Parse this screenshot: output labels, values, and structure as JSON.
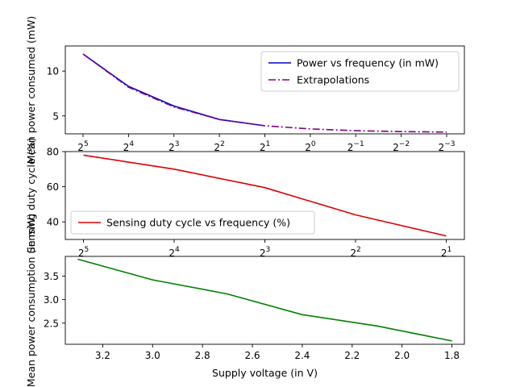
{
  "chart_data": [
    {
      "type": "line",
      "title": "",
      "xlabel": "",
      "ylabel": "Mean power consumed (mW)",
      "x_scale": "log2",
      "x_inverted": true,
      "x_ticks": [
        32,
        16,
        8,
        4,
        2,
        1,
        0.5,
        0.25,
        0.125
      ],
      "x_tick_labels": [
        {
          "base": "2",
          "exp": "5"
        },
        {
          "base": "2",
          "exp": "4"
        },
        {
          "base": "2",
          "exp": "3"
        },
        {
          "base": "2",
          "exp": "2"
        },
        {
          "base": "2",
          "exp": "1"
        },
        {
          "base": "2",
          "exp": "0"
        },
        {
          "base": "2",
          "exp": "−1"
        },
        {
          "base": "2",
          "exp": "−2"
        },
        {
          "base": "2",
          "exp": "−3"
        }
      ],
      "y_ticks": [
        5,
        10
      ],
      "y_tick_labels": [
        "5",
        "10"
      ],
      "ylim": [
        3.0,
        12.8
      ],
      "grid": false,
      "legend_position": "upper right",
      "series": [
        {
          "name": "Power vs frequency (in mW)",
          "color": "#0000cc",
          "style": "solid",
          "x": [
            32,
            16,
            8,
            4,
            2
          ],
          "y": [
            11.9,
            8.3,
            6.1,
            4.6,
            3.9
          ]
        },
        {
          "name": "Extrapolations",
          "color": "#800080",
          "style": "dashdot",
          "x": [
            32,
            16,
            8,
            4,
            2,
            1,
            0.5,
            0.25,
            0.125
          ],
          "y": [
            11.9,
            8.2,
            6.0,
            4.6,
            3.9,
            3.55,
            3.35,
            3.25,
            3.2
          ]
        }
      ]
    },
    {
      "type": "line",
      "title": "",
      "xlabel": "",
      "ylabel": "Sensing duty cycle (%)",
      "x_scale": "log2",
      "x_inverted": true,
      "x_ticks": [
        32,
        16,
        8,
        4,
        2
      ],
      "x_tick_labels": [
        {
          "base": "2",
          "exp": "5"
        },
        {
          "base": "2",
          "exp": "4"
        },
        {
          "base": "2",
          "exp": "3"
        },
        {
          "base": "2",
          "exp": "2"
        },
        {
          "base": "2",
          "exp": "1"
        }
      ],
      "y_ticks": [
        40,
        60,
        80
      ],
      "y_tick_labels": [
        "40",
        "60",
        "80"
      ],
      "ylim": [
        30,
        80
      ],
      "grid": false,
      "legend_position": "lower left",
      "series": [
        {
          "name": "Sensing duty cycle vs frequency (%)",
          "color": "#dd0000",
          "style": "solid",
          "x": [
            32,
            16,
            8,
            4,
            2
          ],
          "y": [
            78,
            70,
            59.5,
            44,
            32
          ]
        }
      ]
    },
    {
      "type": "line",
      "title": "",
      "xlabel": "Supply voltage (in V)",
      "ylabel": "Mean power consumption (in mW)",
      "x_scale": "linear",
      "x_inverted": true,
      "x_ticks": [
        3.2,
        3.0,
        2.8,
        2.6,
        2.4,
        2.2,
        2.0,
        1.8
      ],
      "x_tick_labels": [
        "3.2",
        "3.0",
        "2.8",
        "2.6",
        "2.4",
        "2.2",
        "2.0",
        "1.8"
      ],
      "xlim": [
        3.35,
        1.75
      ],
      "y_ticks": [
        2.5,
        3.0,
        3.5
      ],
      "y_tick_labels": [
        "2.5",
        "3.0",
        "3.5"
      ],
      "ylim": [
        2.05,
        3.92
      ],
      "grid": false,
      "series": [
        {
          "color": "#008000",
          "style": "solid",
          "x": [
            3.3,
            3.0,
            2.7,
            2.4,
            2.1,
            1.8
          ],
          "y": [
            3.86,
            3.42,
            3.12,
            2.68,
            2.44,
            2.12
          ]
        }
      ]
    }
  ]
}
